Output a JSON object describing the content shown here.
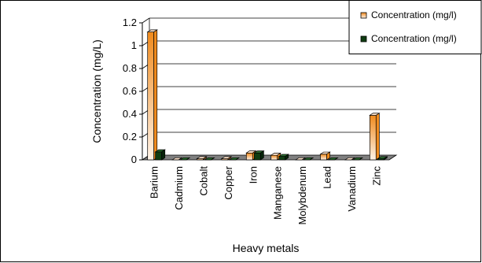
{
  "chart_data": {
    "type": "bar",
    "xlabel": "Heavy metals",
    "ylabel": "Concentration (mg/L)",
    "ylim": [
      0,
      1.2
    ],
    "yticks": [
      "0",
      "0.2",
      "0.4",
      "0.6",
      "0.8",
      "1",
      "1.2"
    ],
    "categories": [
      "Barium",
      "Cadmium",
      "Cobalt",
      "Copper",
      "Iron",
      "Manganese",
      "Molybdenum",
      "Lead",
      "Vanadium",
      "Zinc"
    ],
    "series": [
      {
        "name": "Concentration (mg/l)",
        "values": [
          1.12,
          0.0,
          0.01,
          0.01,
          0.06,
          0.04,
          0.0,
          0.05,
          0.0,
          0.39
        ]
      },
      {
        "name": "Concentration (mg/l)",
        "values": [
          0.07,
          0.0,
          0.0,
          0.0,
          0.06,
          0.03,
          0.0,
          0.0,
          0.0,
          0.01
        ]
      }
    ],
    "legend_position": "top-right",
    "gridlines": true,
    "colors": {
      "series1_light": "#fde3cc",
      "series1_dark": "#f08a1c",
      "series2": "#0f3d12",
      "floor": "#808080",
      "grid": "#000000"
    }
  }
}
